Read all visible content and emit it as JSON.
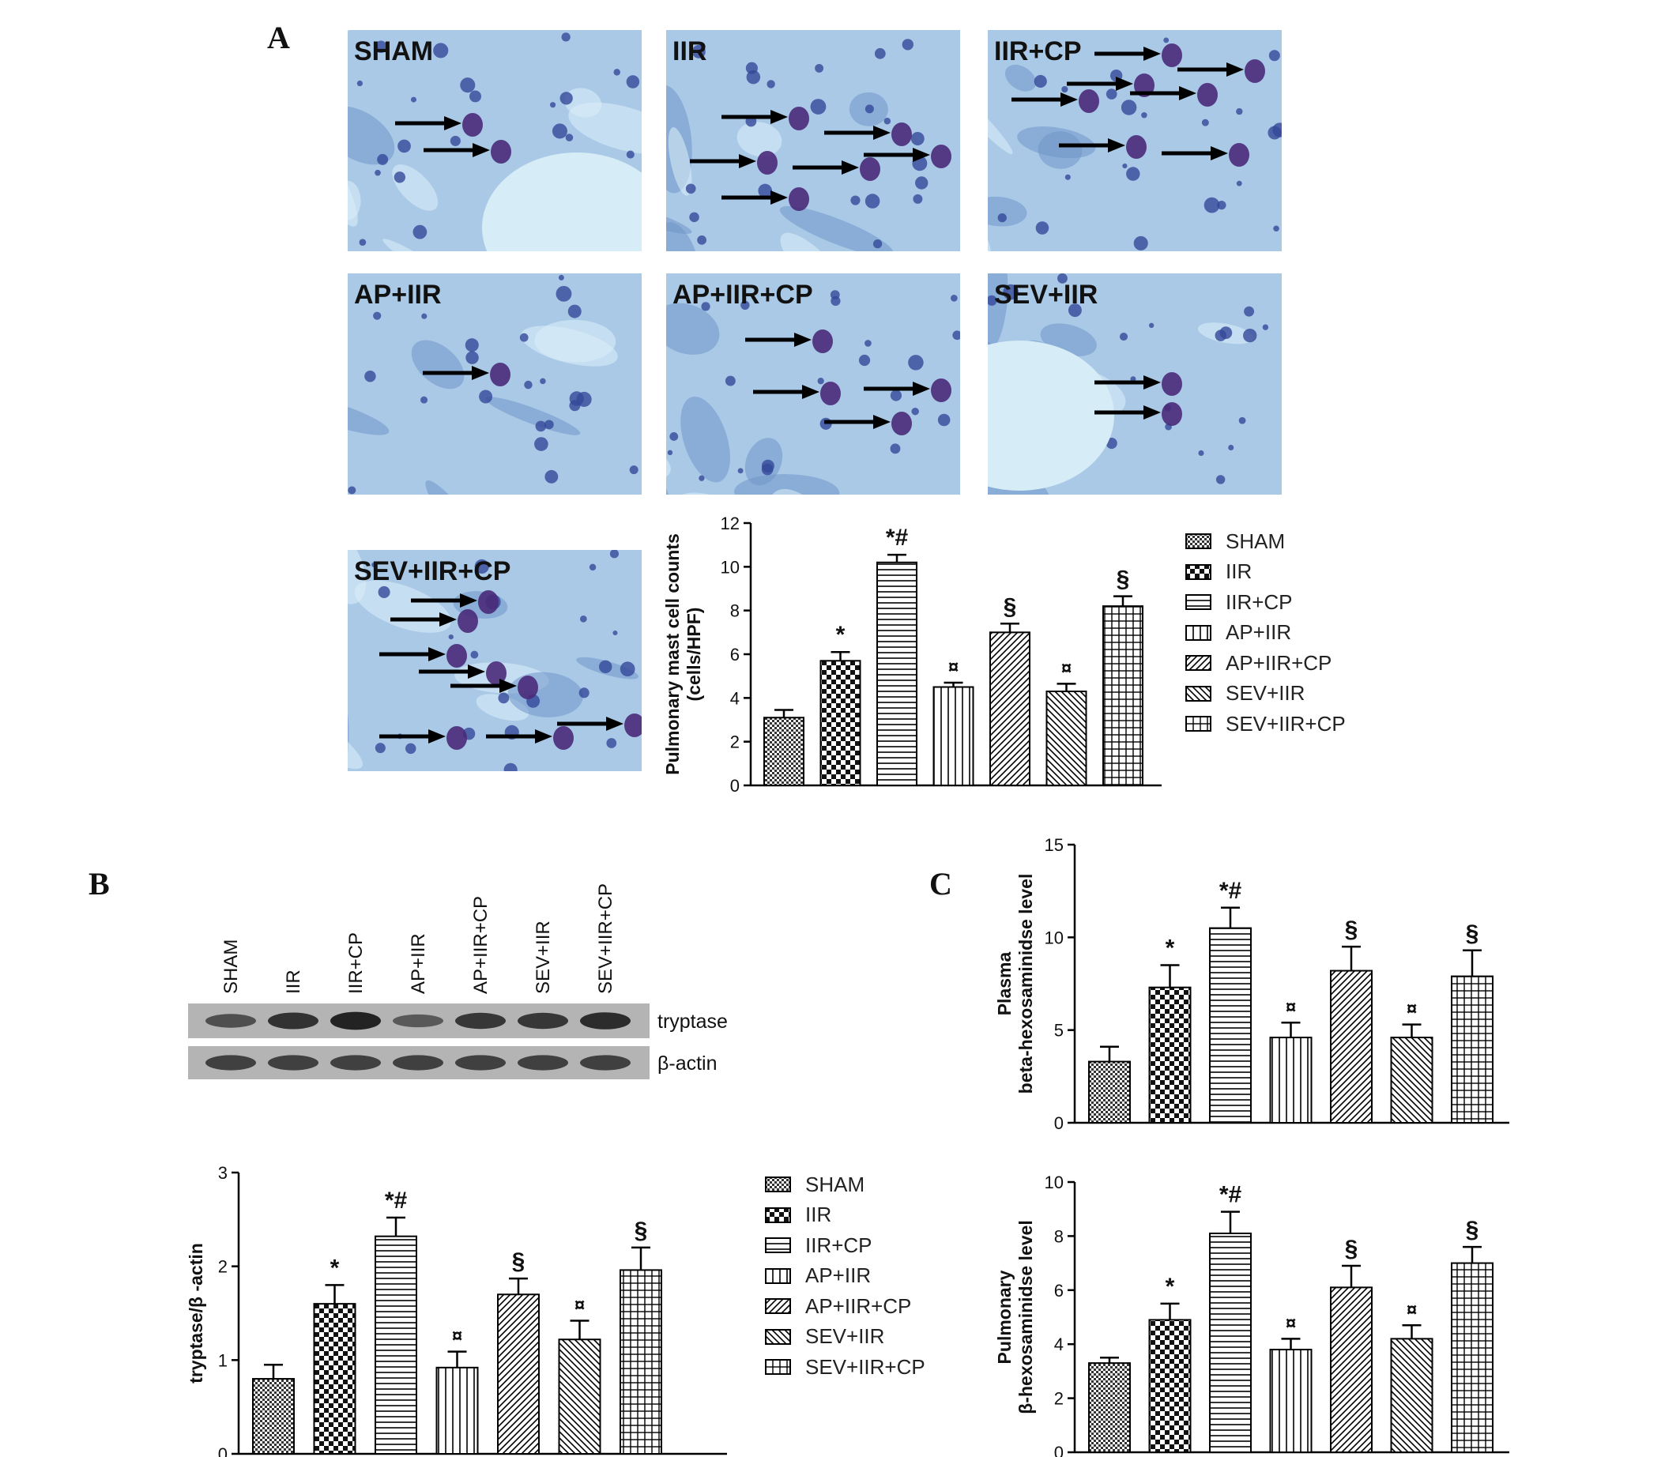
{
  "panel_labels": {
    "a": "A",
    "b": "B",
    "c": "C"
  },
  "micrographs": [
    {
      "label": "SHAM",
      "arrows": 2
    },
    {
      "label": "IIR",
      "arrows": 6
    },
    {
      "label": "IIR+CP",
      "arrows": 7
    },
    {
      "label": "AP+IIR",
      "arrows": 1
    },
    {
      "label": "AP+IIR+CP",
      "arrows": 4
    },
    {
      "label": "SEV+IIR",
      "arrows": 2
    },
    {
      "label": "SEV+IIR+CP",
      "arrows": 8
    }
  ],
  "groups": [
    "SHAM",
    "IIR",
    "IIR+CP",
    "AP+IIR",
    "AP+IIR+CP",
    "SEV+IIR",
    "SEV+IIR+CP"
  ],
  "legend": [
    "SHAM",
    "IIR",
    "IIR+CP",
    "AP+IIR",
    "AP+IIR+CP",
    "SEV+IIR",
    "SEV+IIR+CP"
  ],
  "blot": {
    "lane_labels": [
      "SHAM",
      "IIR",
      "IIR+CP",
      "AP+IIR",
      "AP+IIR+CP",
      "SEV+IIR",
      "SEV+IIR+CP"
    ],
    "row_labels": [
      "tryptase",
      "β-actin"
    ],
    "tryptase_intensity": [
      0.45,
      0.75,
      0.9,
      0.35,
      0.7,
      0.7,
      0.8
    ]
  },
  "chart_data": [
    {
      "id": "mast",
      "type": "bar",
      "title": "",
      "ylabel": "Pulmonary mast cell counts\n(cells/HPF)",
      "xlabel": "",
      "ylim": [
        0,
        12
      ],
      "yticks": [
        0,
        2,
        4,
        6,
        8,
        10,
        12
      ],
      "categories": [
        "SHAM",
        "IIR",
        "IIR+CP",
        "AP+IIR",
        "AP+IIR+CP",
        "SEV+IIR",
        "SEV+IIR+CP"
      ],
      "values": [
        3.1,
        5.7,
        10.2,
        4.5,
        7.0,
        4.3,
        8.2
      ],
      "errors": [
        0.35,
        0.4,
        0.35,
        0.2,
        0.4,
        0.35,
        0.45
      ],
      "annotations": [
        "",
        "*",
        "*#",
        "¤",
        "§",
        "¤",
        "§"
      ]
    },
    {
      "id": "tryptase",
      "type": "bar",
      "title": "",
      "ylabel": "tryptase/β -actin",
      "xlabel": "",
      "ylim": [
        0,
        3
      ],
      "yticks": [
        0,
        1,
        2,
        3
      ],
      "categories": [
        "SHAM",
        "IIR",
        "IIR+CP",
        "AP+IIR",
        "AP+IIR+CP",
        "SEV+IIR",
        "SEV+IIR+CP"
      ],
      "values": [
        0.8,
        1.6,
        2.32,
        0.92,
        1.7,
        1.22,
        1.96
      ],
      "errors": [
        0.15,
        0.2,
        0.2,
        0.17,
        0.17,
        0.2,
        0.24
      ],
      "annotations": [
        "",
        "*",
        "*#",
        "¤",
        "§",
        "¤",
        "§"
      ]
    },
    {
      "id": "plasma",
      "type": "bar",
      "title": "",
      "ylabel": "Plasma\nbeta-hexosaminidse level",
      "xlabel": "",
      "ylim": [
        0,
        15
      ],
      "yticks": [
        0,
        5,
        10,
        15
      ],
      "categories": [
        "SHAM",
        "IIR",
        "IIR+CP",
        "AP+IIR",
        "AP+IIR+CP",
        "SEV+IIR",
        "SEV+IIR+CP"
      ],
      "values": [
        3.3,
        7.3,
        10.5,
        4.6,
        8.2,
        4.6,
        7.9
      ],
      "errors": [
        0.8,
        1.2,
        1.1,
        0.8,
        1.3,
        0.7,
        1.4
      ],
      "annotations": [
        "",
        "*",
        "*#",
        "¤",
        "§",
        "¤",
        "§"
      ]
    },
    {
      "id": "pulm",
      "type": "bar",
      "title": "",
      "ylabel": "Pulmonary\nβ-hexosaminidse level",
      "xlabel": "",
      "ylim": [
        0,
        10
      ],
      "yticks": [
        0,
        2,
        4,
        6,
        8,
        10
      ],
      "categories": [
        "SHAM",
        "IIR",
        "IIR+CP",
        "AP+IIR",
        "AP+IIR+CP",
        "SEV+IIR",
        "SEV+IIR+CP"
      ],
      "values": [
        3.3,
        4.9,
        8.1,
        3.8,
        6.1,
        4.2,
        7.0
      ],
      "errors": [
        0.2,
        0.6,
        0.8,
        0.4,
        0.8,
        0.5,
        0.6
      ],
      "annotations": [
        "",
        "*",
        "*#",
        "¤",
        "§",
        "¤",
        "§"
      ]
    }
  ]
}
